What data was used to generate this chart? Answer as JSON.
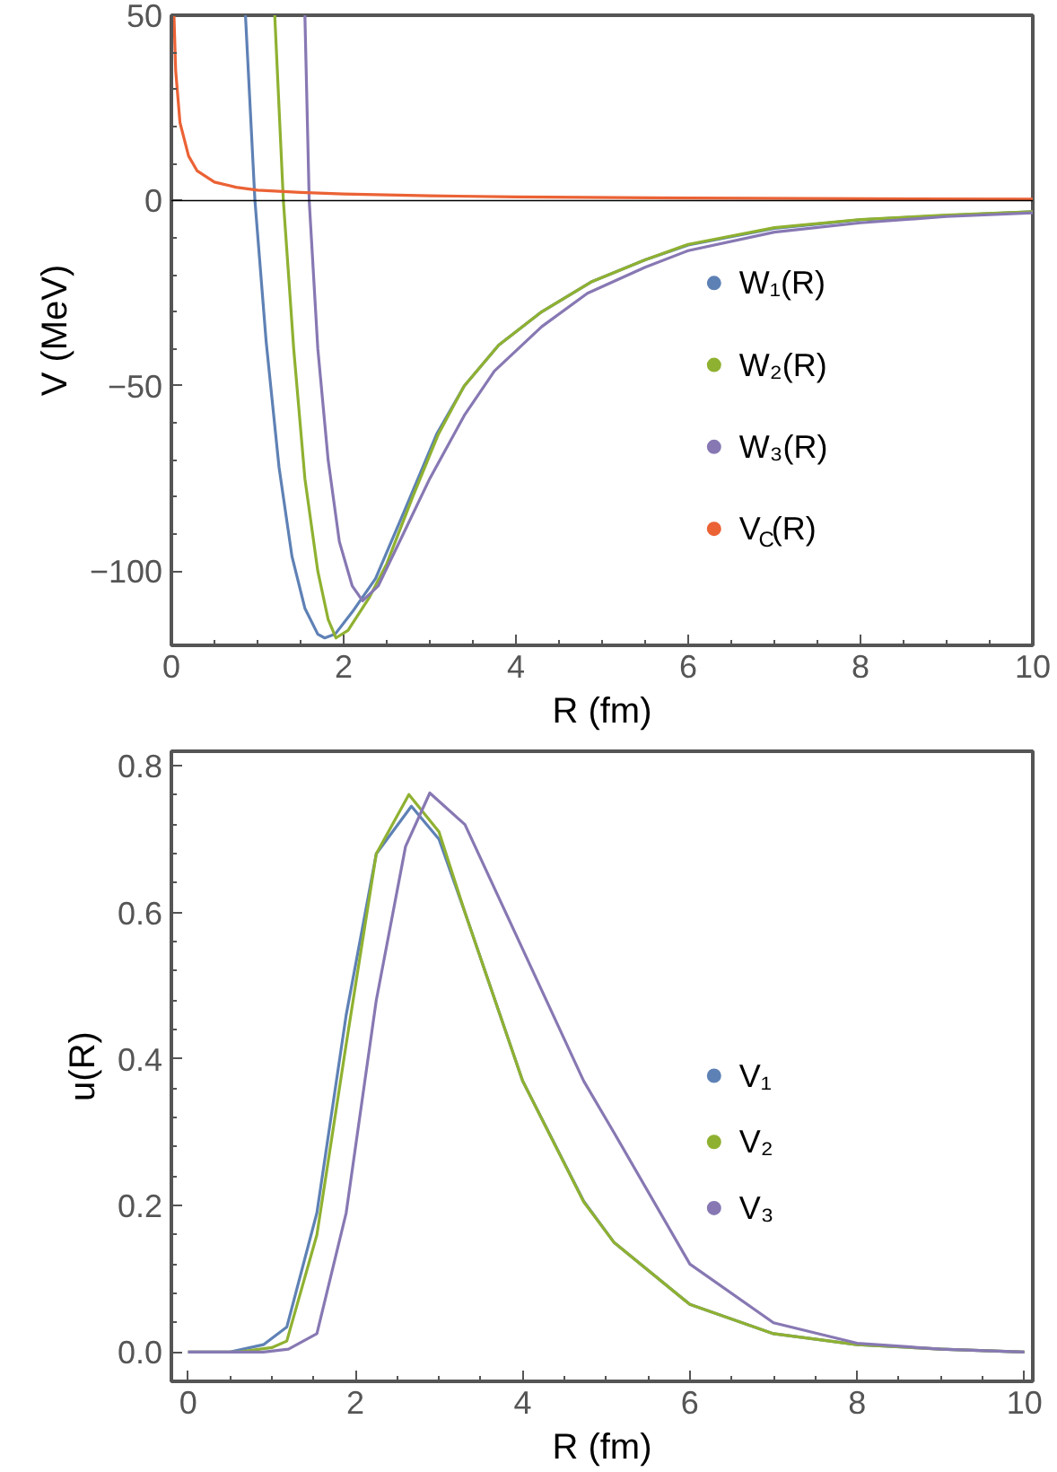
{
  "chart_data": [
    {
      "type": "line",
      "xlabel": "R (fm)",
      "ylabel": "V (MeV)",
      "xlim": [
        0,
        10
      ],
      "ylim": [
        -120,
        50
      ],
      "xticks": [
        0,
        2,
        4,
        6,
        8,
        10
      ],
      "yticks": [
        {
          "value": -100,
          "label": "−100"
        },
        {
          "value": -50,
          "label": "−50"
        },
        0,
        50
      ],
      "grid": false,
      "legend": "right",
      "marker": "none",
      "line_style": "solid",
      "ref_lines": [
        {
          "axis": "y",
          "value": 0,
          "color": "#000000"
        }
      ],
      "series": [
        {
          "name": "W₁(R)",
          "color": "#5e81b5",
          "x": [
            0.86,
            0.97,
            1.1,
            1.25,
            1.4,
            1.55,
            1.7,
            1.78,
            1.9,
            2.1,
            2.37,
            2.7,
            3.08,
            3.4,
            3.8,
            4.3,
            4.87,
            5.5,
            6,
            7,
            8,
            9,
            10
          ],
          "values": [
            50,
            0,
            -38,
            -72,
            -96,
            -110,
            -117,
            -118,
            -117,
            -111,
            -102,
            -84,
            -63,
            -50,
            -39,
            -30,
            -22,
            -16,
            -12,
            -7.5,
            -5.2,
            -4,
            -3
          ]
        },
        {
          "name": "W₂(R)",
          "color": "#8fb131",
          "x": [
            1.2,
            1.3,
            1.42,
            1.55,
            1.7,
            1.82,
            1.91,
            2.05,
            2.3,
            2.5,
            2.8,
            3.1,
            3.4,
            3.8,
            4.3,
            4.87,
            5.5,
            6,
            7,
            8,
            9,
            10
          ],
          "values": [
            50,
            0,
            -40,
            -75,
            -100,
            -113,
            -118,
            -116,
            -107,
            -98,
            -80,
            -63,
            -50,
            -39,
            -30,
            -22,
            -16,
            -11.8,
            -7.3,
            -5.1,
            -3.9,
            -3
          ]
        },
        {
          "name": "W₃(R)",
          "color": "#8778b3",
          "x": [
            1.55,
            1.6,
            1.7,
            1.82,
            1.95,
            2.1,
            2.22,
            2.4,
            2.67,
            3.0,
            3.4,
            3.75,
            4.3,
            4.83,
            5.5,
            6,
            7,
            8,
            9,
            10
          ],
          "values": [
            50,
            0,
            -40,
            -70,
            -92,
            -104,
            -108,
            -104,
            -91,
            -75,
            -58,
            -46,
            -34,
            -25,
            -18,
            -13.5,
            -8.5,
            -6,
            -4.3,
            -3.3
          ]
        },
        {
          "name": "V$_{C}$(R)",
          "color": "#eb6235",
          "x": [
            0.03,
            0.05,
            0.1,
            0.2,
            0.3,
            0.5,
            0.75,
            1,
            1.5,
            2,
            3,
            4,
            6,
            8,
            10
          ],
          "values": [
            50,
            35,
            21,
            12,
            8,
            5,
            3.6,
            2.8,
            2.2,
            1.8,
            1.3,
            1,
            0.7,
            0.5,
            0.4
          ]
        }
      ]
    },
    {
      "type": "line",
      "xlabel": "R (fm)",
      "ylabel": "u(R)",
      "xlim": [
        -0.2,
        10.1
      ],
      "ylim": [
        -0.04,
        0.82
      ],
      "xticks": [
        0,
        2,
        4,
        6,
        8,
        10
      ],
      "yticks": [
        {
          "value": 0,
          "label": "0.0"
        },
        0.2,
        0.4,
        0.6,
        0.8
      ],
      "grid": false,
      "legend": "right",
      "marker": "none",
      "line_style": "solid",
      "series": [
        {
          "name": "V₁",
          "color": "#5e81b5",
          "x": [
            0,
            0.5,
            0.9,
            1.18,
            1.54,
            1.89,
            2.25,
            2.67,
            3.0,
            3.31,
            4.0,
            4.73,
            5.09,
            6,
            7,
            8,
            9,
            10
          ],
          "values": [
            0,
            0,
            0.01,
            0.034,
            0.19,
            0.46,
            0.68,
            0.745,
            0.7,
            0.6,
            0.37,
            0.206,
            0.15,
            0.065,
            0.025,
            0.01,
            0.004,
            0
          ]
        },
        {
          "name": "V₂",
          "color": "#8fb131",
          "x": [
            0,
            0.6,
            1.0,
            1.18,
            1.54,
            1.89,
            2.25,
            2.64,
            3.0,
            3.31,
            4.0,
            4.73,
            5.09,
            6,
            7,
            8,
            9,
            10
          ],
          "values": [
            0,
            0,
            0.006,
            0.015,
            0.16,
            0.42,
            0.68,
            0.761,
            0.71,
            0.6,
            0.37,
            0.205,
            0.15,
            0.065,
            0.025,
            0.01,
            0.004,
            0
          ]
        },
        {
          "name": "V₃",
          "color": "#8778b3",
          "x": [
            0,
            0.9,
            1.2,
            1.54,
            1.89,
            2.25,
            2.6,
            2.89,
            3.31,
            4.0,
            4.73,
            5.09,
            6,
            7,
            8,
            9,
            10
          ],
          "values": [
            0,
            0,
            0.004,
            0.025,
            0.19,
            0.48,
            0.69,
            0.763,
            0.72,
            0.55,
            0.37,
            0.3,
            0.12,
            0.04,
            0.012,
            0.004,
            0
          ]
        }
      ]
    }
  ]
}
